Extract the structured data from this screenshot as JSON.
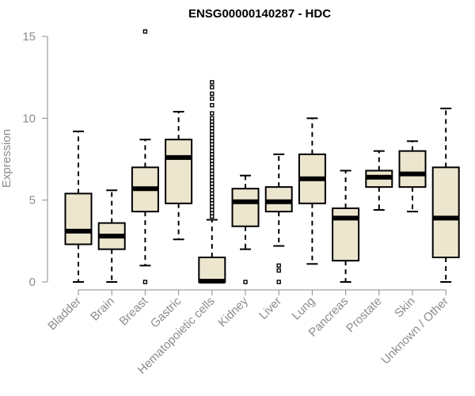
{
  "chart_data": {
    "type": "box",
    "title": "ENSG00000140287 - HDC",
    "xlabel": "",
    "ylabel": "Expression",
    "ylim": [
      0,
      15
    ],
    "yticks": [
      0,
      5,
      10,
      15
    ],
    "grid": false,
    "colors": {
      "box_fill": "#ede6cf",
      "box_stroke": "#000000",
      "axis": "#8c8c8c",
      "text": "#8c8c8c"
    },
    "categories": [
      "Bladder",
      "Brain",
      "Breast",
      "Gastric",
      "Hematopoietic cells",
      "Kidney",
      "Liver",
      "Lung",
      "Pancreas",
      "Prostate",
      "Skin",
      "Unknown / Other"
    ],
    "boxes": [
      {
        "category": "Bladder",
        "whisker_low": 0,
        "q1": 2.3,
        "median": 3.1,
        "q3": 5.4,
        "whisker_high": 9.2,
        "outliers": []
      },
      {
        "category": "Brain",
        "whisker_low": 0,
        "q1": 2.0,
        "median": 2.8,
        "q3": 3.6,
        "whisker_high": 5.6,
        "outliers": []
      },
      {
        "category": "Breast",
        "whisker_low": 1.0,
        "q1": 4.3,
        "median": 5.7,
        "q3": 7.0,
        "whisker_high": 8.7,
        "outliers": [
          0,
          15.3
        ]
      },
      {
        "category": "Gastric",
        "whisker_low": 2.6,
        "q1": 4.8,
        "median": 7.6,
        "q3": 8.7,
        "whisker_high": 10.4,
        "outliers": []
      },
      {
        "category": "Hematopoietic cells",
        "whisker_low": 0,
        "q1": 0,
        "median": 0.05,
        "q3": 1.5,
        "whisker_high": 3.8,
        "outliers": [
          4.0,
          4.2,
          4.4,
          4.6,
          4.8,
          5.0,
          5.2,
          5.4,
          5.6,
          5.8,
          6.0,
          6.2,
          6.4,
          6.6,
          6.8,
          7.0,
          7.2,
          7.4,
          7.6,
          7.8,
          8.0,
          8.2,
          8.4,
          8.6,
          8.8,
          9.0,
          9.2,
          9.4,
          9.6,
          9.8,
          10.0,
          10.3,
          10.8,
          11.2,
          11.5,
          11.9,
          12.2
        ]
      },
      {
        "category": "Kidney",
        "whisker_low": 2.0,
        "q1": 3.4,
        "median": 4.9,
        "q3": 5.7,
        "whisker_high": 6.5,
        "outliers": [
          0
        ]
      },
      {
        "category": "Liver",
        "whisker_low": 2.2,
        "q1": 4.3,
        "median": 4.9,
        "q3": 5.8,
        "whisker_high": 7.8,
        "outliers": [
          0,
          0.7,
          1.0
        ]
      },
      {
        "category": "Lung",
        "whisker_low": 1.1,
        "q1": 4.8,
        "median": 6.3,
        "q3": 7.8,
        "whisker_high": 10.0,
        "outliers": []
      },
      {
        "category": "Pancreas",
        "whisker_low": 0,
        "q1": 1.3,
        "median": 3.9,
        "q3": 4.5,
        "whisker_high": 6.8,
        "outliers": []
      },
      {
        "category": "Prostate",
        "whisker_low": 4.4,
        "q1": 5.8,
        "median": 6.4,
        "q3": 6.8,
        "whisker_high": 8.0,
        "outliers": []
      },
      {
        "category": "Skin",
        "whisker_low": 4.3,
        "q1": 5.8,
        "median": 6.6,
        "q3": 8.0,
        "whisker_high": 8.6,
        "outliers": []
      },
      {
        "category": "Unknown / Other",
        "whisker_low": 0,
        "q1": 1.5,
        "median": 3.9,
        "q3": 7.0,
        "whisker_high": 10.6,
        "outliers": []
      }
    ]
  }
}
